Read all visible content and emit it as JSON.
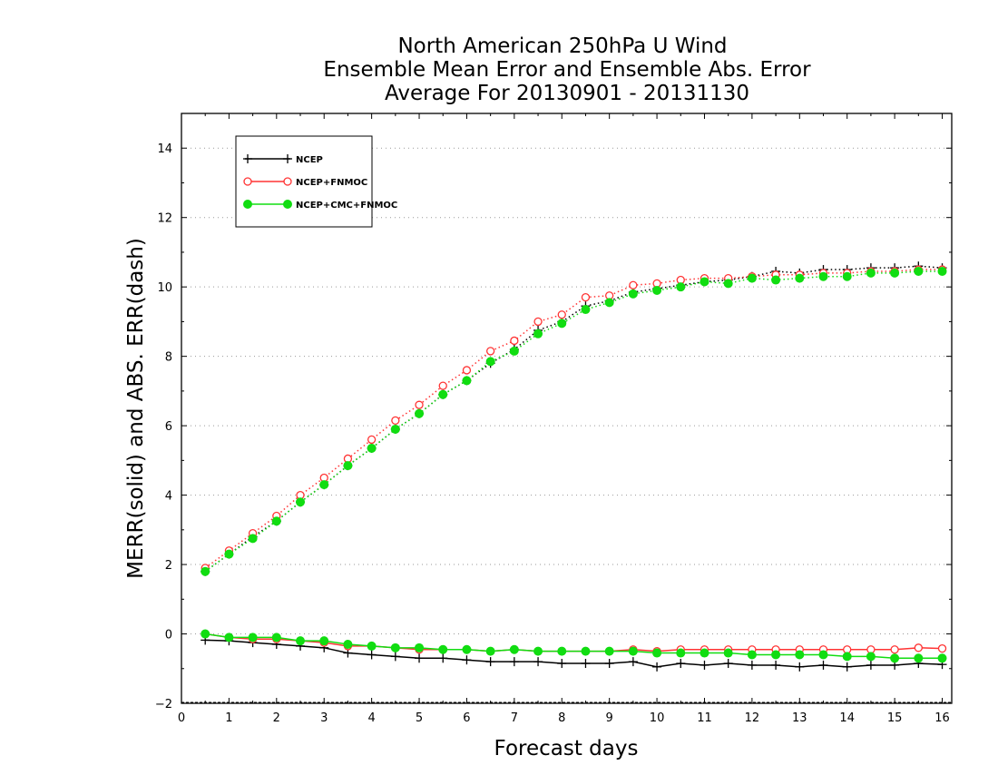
{
  "chart_data": {
    "type": "line",
    "title": [
      "North American 250hPa U Wind",
      "Ensemble Mean Error and Ensemble Abs. Error",
      "Average For 20130901 - 20131130"
    ],
    "xlabel": "Forecast days",
    "ylabel": "MERR(solid) and ABS. ERR(dash)",
    "xlim": [
      0,
      16.2
    ],
    "ylim": [
      -2,
      15
    ],
    "xticks": [
      0,
      1,
      2,
      3,
      4,
      5,
      6,
      7,
      8,
      9,
      10,
      11,
      12,
      13,
      14,
      15,
      16
    ],
    "yticks": [
      -2,
      0,
      2,
      4,
      6,
      8,
      10,
      12,
      14
    ],
    "grid": "horizontal dotted",
    "legend_position": "top-left",
    "x": [
      0.5,
      1,
      1.5,
      2,
      2.5,
      3,
      3.5,
      4,
      4.5,
      5,
      5.5,
      6,
      6.5,
      7,
      7.5,
      8,
      8.5,
      9,
      9.5,
      10,
      10.5,
      11,
      11.5,
      12,
      12.5,
      13,
      13.5,
      14,
      14.5,
      15,
      15.5,
      16
    ],
    "series": [
      {
        "name": "NCEP",
        "color": "#000000",
        "marker": "plus",
        "merr": [
          -0.18,
          -0.2,
          -0.25,
          -0.3,
          -0.35,
          -0.4,
          -0.55,
          -0.6,
          -0.65,
          -0.7,
          -0.7,
          -0.75,
          -0.8,
          -0.8,
          -0.8,
          -0.85,
          -0.85,
          -0.85,
          -0.8,
          -0.95,
          -0.85,
          -0.9,
          -0.85,
          -0.9,
          -0.9,
          -0.95,
          -0.9,
          -0.95,
          -0.9,
          -0.9,
          -0.85,
          -0.88
        ],
        "abs_err": [
          1.8,
          2.3,
          2.8,
          3.25,
          3.8,
          4.3,
          4.85,
          5.35,
          5.9,
          6.35,
          6.9,
          7.3,
          7.8,
          8.2,
          8.75,
          9.0,
          9.45,
          9.6,
          9.85,
          9.95,
          10.05,
          10.15,
          10.2,
          10.3,
          10.45,
          10.4,
          10.5,
          10.5,
          10.55,
          10.55,
          10.6,
          10.55
        ]
      },
      {
        "name": "NCEP+FNMOC",
        "color": "#ff3333",
        "marker": "open-circle",
        "merr": [
          0.0,
          -0.1,
          -0.15,
          -0.15,
          -0.2,
          -0.25,
          -0.35,
          -0.35,
          -0.4,
          -0.45,
          -0.45,
          -0.45,
          -0.5,
          -0.45,
          -0.5,
          -0.5,
          -0.5,
          -0.5,
          -0.45,
          -0.5,
          -0.45,
          -0.45,
          -0.45,
          -0.45,
          -0.45,
          -0.45,
          -0.45,
          -0.45,
          -0.45,
          -0.45,
          -0.4,
          -0.42
        ],
        "abs_err": [
          1.9,
          2.4,
          2.9,
          3.4,
          4.0,
          4.5,
          5.05,
          5.6,
          6.15,
          6.6,
          7.15,
          7.6,
          8.15,
          8.45,
          9.0,
          9.2,
          9.7,
          9.75,
          10.05,
          10.1,
          10.2,
          10.25,
          10.25,
          10.3,
          10.35,
          10.35,
          10.4,
          10.4,
          10.45,
          10.45,
          10.5,
          10.5
        ]
      },
      {
        "name": "NCEP+CMC+FNMOC",
        "color": "#11dd11",
        "marker": "filled-circle",
        "merr": [
          0.0,
          -0.1,
          -0.1,
          -0.1,
          -0.2,
          -0.2,
          -0.3,
          -0.35,
          -0.4,
          -0.4,
          -0.45,
          -0.45,
          -0.5,
          -0.45,
          -0.5,
          -0.5,
          -0.5,
          -0.5,
          -0.5,
          -0.55,
          -0.55,
          -0.55,
          -0.55,
          -0.6,
          -0.6,
          -0.6,
          -0.6,
          -0.65,
          -0.65,
          -0.7,
          -0.7,
          -0.7
        ],
        "abs_err": [
          1.8,
          2.3,
          2.75,
          3.25,
          3.8,
          4.3,
          4.85,
          5.35,
          5.9,
          6.35,
          6.9,
          7.3,
          7.85,
          8.15,
          8.65,
          8.95,
          9.35,
          9.55,
          9.8,
          9.9,
          10.0,
          10.15,
          10.1,
          10.25,
          10.2,
          10.25,
          10.3,
          10.3,
          10.4,
          10.4,
          10.45,
          10.45
        ]
      }
    ]
  }
}
